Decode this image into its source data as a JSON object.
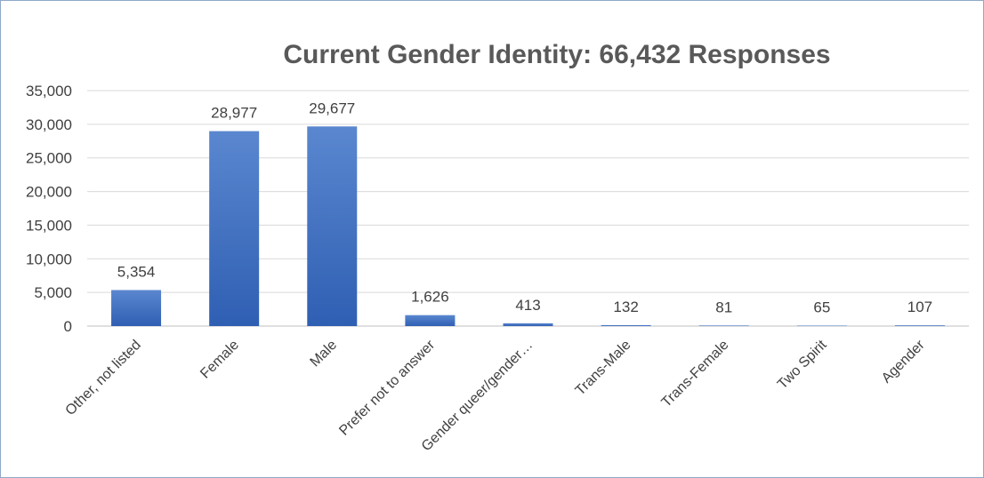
{
  "chart_data": {
    "type": "bar",
    "title": "Current Gender Identity: 66,432 Responses",
    "categories": [
      "Other, not listed",
      "Female",
      "Male",
      "Prefer not to answer",
      "Gender queer/gender…",
      "Trans-Male",
      "Trans-Female",
      "Two Spirit",
      "Agender"
    ],
    "values": [
      5354,
      28977,
      29677,
      1626,
      413,
      132,
      81,
      65,
      107
    ],
    "data_labels": [
      "5,354",
      "28,977",
      "29,677",
      "1,626",
      "413",
      "132",
      "81",
      "65",
      "107"
    ],
    "y_ticks": [
      0,
      5000,
      10000,
      15000,
      20000,
      25000,
      30000,
      35000
    ],
    "y_tick_labels": [
      "0",
      "5,000",
      "10,000",
      "15,000",
      "20,000",
      "25,000",
      "30,000",
      "35,000"
    ],
    "ylim": [
      0,
      35000
    ],
    "xlabel": "",
    "ylabel": "",
    "grid": true,
    "legend": "none",
    "colors": {
      "bar_top": "#5a87cf",
      "bar_bottom": "#2f5fb3",
      "gridline": "#d9d9d9",
      "axis": "#bfbfbf",
      "frame": "#8ea9c8"
    }
  }
}
